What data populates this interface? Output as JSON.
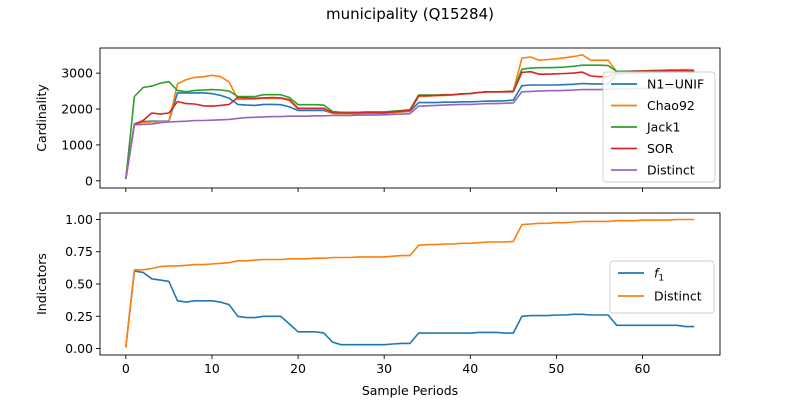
{
  "figure": {
    "title": "municipality (Q15284)"
  },
  "chart_data": [
    {
      "type": "line",
      "xlabel": "",
      "ylabel": "Cardinality",
      "xlim": [
        -3,
        69
      ],
      "ylim": [
        -200,
        3700
      ],
      "xticks": [
        0,
        10,
        20,
        30,
        40,
        50,
        60
      ],
      "yticks": [
        0,
        1000,
        2000,
        3000
      ],
      "legend": "right",
      "x": [
        0,
        1,
        2,
        3,
        4,
        5,
        6,
        7,
        8,
        9,
        10,
        11,
        12,
        13,
        14,
        15,
        16,
        17,
        18,
        19,
        20,
        21,
        22,
        23,
        24,
        25,
        26,
        27,
        28,
        29,
        30,
        31,
        32,
        33,
        34,
        35,
        36,
        37,
        38,
        39,
        40,
        41,
        42,
        43,
        44,
        45,
        46,
        47,
        48,
        49,
        50,
        51,
        52,
        53,
        54,
        55,
        56,
        57,
        58,
        59,
        60,
        61,
        62,
        63,
        64,
        65,
        66
      ],
      "series": [
        {
          "name": "N1−UNIF",
          "color": "#1f77b4",
          "values": [
            50,
            1580,
            1650,
            1660,
            1660,
            1660,
            2450,
            2450,
            2450,
            2450,
            2430,
            2380,
            2300,
            2130,
            2110,
            2100,
            2130,
            2130,
            2120,
            2060,
            1960,
            1960,
            1960,
            1960,
            1880,
            1870,
            1870,
            1870,
            1880,
            1880,
            1880,
            1900,
            1920,
            1930,
            2180,
            2180,
            2180,
            2190,
            2190,
            2200,
            2200,
            2210,
            2220,
            2220,
            2230,
            2250,
            2650,
            2670,
            2670,
            2670,
            2670,
            2680,
            2690,
            2710,
            2700,
            2700,
            2700,
            2980,
            2990,
            3000,
            3000,
            3010,
            3020,
            3020,
            3030,
            3030,
            3020
          ]
        },
        {
          "name": "Chao92",
          "color": "#ff7f0e",
          "values": [
            50,
            1580,
            1620,
            1640,
            1650,
            1650,
            2700,
            2820,
            2880,
            2900,
            2940,
            2900,
            2750,
            2270,
            2270,
            2280,
            2300,
            2300,
            2300,
            2240,
            2000,
            2000,
            2000,
            2000,
            1880,
            1870,
            1870,
            1880,
            1880,
            1890,
            1890,
            1900,
            1920,
            1940,
            2350,
            2360,
            2370,
            2380,
            2390,
            2420,
            2430,
            2460,
            2480,
            2480,
            2490,
            2500,
            3420,
            3450,
            3360,
            3380,
            3400,
            3430,
            3460,
            3510,
            3360,
            3360,
            3360,
            3040,
            3040,
            3050,
            3060,
            3070,
            3080,
            3090,
            3090,
            3100,
            3090
          ]
        },
        {
          "name": "Jack1",
          "color": "#2ca02c",
          "values": [
            50,
            2350,
            2600,
            2640,
            2720,
            2760,
            2520,
            2480,
            2520,
            2530,
            2540,
            2530,
            2500,
            2350,
            2350,
            2350,
            2400,
            2400,
            2400,
            2320,
            2120,
            2120,
            2120,
            2110,
            1930,
            1910,
            1910,
            1910,
            1920,
            1920,
            1920,
            1940,
            1960,
            1980,
            2390,
            2390,
            2390,
            2400,
            2400,
            2420,
            2430,
            2460,
            2480,
            2480,
            2480,
            2500,
            3110,
            3140,
            3150,
            3150,
            3160,
            3170,
            3190,
            3220,
            3220,
            3220,
            3210,
            3050,
            3050,
            3060,
            3060,
            3070,
            3070,
            3070,
            3070,
            3070,
            3060
          ]
        },
        {
          "name": "SOR",
          "color": "#d62728",
          "values": [
            50,
            1580,
            1680,
            1890,
            1860,
            1890,
            2210,
            2150,
            2140,
            2090,
            2080,
            2100,
            2130,
            2320,
            2310,
            2300,
            2310,
            2320,
            2310,
            2260,
            2020,
            2020,
            2020,
            2020,
            1900,
            1890,
            1890,
            1900,
            1900,
            1900,
            1900,
            1920,
            1940,
            1960,
            2370,
            2370,
            2380,
            2390,
            2400,
            2420,
            2430,
            2460,
            2480,
            2480,
            2480,
            2480,
            3020,
            3040,
            2970,
            2970,
            2980,
            2990,
            3000,
            3030,
            2920,
            2900,
            2900,
            3030,
            3040,
            3050,
            3060,
            3060,
            3060,
            3070,
            3070,
            3070,
            3060
          ]
        },
        {
          "name": "Distinct",
          "color": "#9467bd",
          "values": [
            50,
            1560,
            1570,
            1580,
            1620,
            1640,
            1650,
            1660,
            1680,
            1680,
            1690,
            1700,
            1710,
            1740,
            1760,
            1770,
            1780,
            1790,
            1790,
            1800,
            1800,
            1800,
            1810,
            1810,
            1820,
            1820,
            1820,
            1830,
            1830,
            1830,
            1840,
            1850,
            1860,
            1870,
            2080,
            2090,
            2100,
            2110,
            2120,
            2130,
            2130,
            2140,
            2150,
            2150,
            2160,
            2170,
            2480,
            2490,
            2500,
            2510,
            2510,
            2520,
            2530,
            2540,
            2540,
            2540,
            2550,
            2560,
            2560,
            2570,
            2570,
            2580,
            2580,
            2590,
            2590,
            2600,
            2610
          ]
        }
      ]
    },
    {
      "type": "line",
      "xlabel": "Sample Periods",
      "ylabel": "Indicators",
      "xlim": [
        -3,
        69
      ],
      "ylim": [
        -0.05,
        1.05
      ],
      "xticks": [
        0,
        10,
        20,
        30,
        40,
        50,
        60
      ],
      "yticks": [
        "0.00",
        "0.25",
        "0.50",
        "0.75",
        "1.00"
      ],
      "legend": "right",
      "x": [
        0,
        1,
        2,
        3,
        4,
        5,
        6,
        7,
        8,
        9,
        10,
        11,
        12,
        13,
        14,
        15,
        16,
        17,
        18,
        19,
        20,
        21,
        22,
        23,
        24,
        25,
        26,
        27,
        28,
        29,
        30,
        31,
        32,
        33,
        34,
        35,
        36,
        37,
        38,
        39,
        40,
        41,
        42,
        43,
        44,
        45,
        46,
        47,
        48,
        49,
        50,
        51,
        52,
        53,
        54,
        55,
        56,
        57,
        58,
        59,
        60,
        61,
        62,
        63,
        64,
        65,
        66
      ],
      "series": [
        {
          "name": "f1",
          "color": "#1f77b4",
          "values": [
            0.01,
            0.6,
            0.59,
            0.54,
            0.53,
            0.52,
            0.37,
            0.36,
            0.37,
            0.37,
            0.37,
            0.36,
            0.34,
            0.25,
            0.24,
            0.24,
            0.25,
            0.25,
            0.25,
            0.19,
            0.13,
            0.13,
            0.13,
            0.12,
            0.05,
            0.03,
            0.03,
            0.03,
            0.03,
            0.03,
            0.03,
            0.035,
            0.04,
            0.04,
            0.12,
            0.12,
            0.12,
            0.12,
            0.12,
            0.12,
            0.12,
            0.125,
            0.125,
            0.125,
            0.12,
            0.12,
            0.25,
            0.255,
            0.255,
            0.255,
            0.26,
            0.26,
            0.265,
            0.265,
            0.26,
            0.26,
            0.26,
            0.18,
            0.18,
            0.18,
            0.18,
            0.18,
            0.18,
            0.18,
            0.18,
            0.17,
            0.17
          ]
        },
        {
          "name": "Distinct",
          "color": "#ff7f0e",
          "values": [
            0.01,
            0.61,
            0.61,
            0.62,
            0.635,
            0.64,
            0.64,
            0.645,
            0.65,
            0.65,
            0.655,
            0.66,
            0.665,
            0.68,
            0.68,
            0.685,
            0.69,
            0.69,
            0.69,
            0.695,
            0.695,
            0.695,
            0.7,
            0.7,
            0.705,
            0.705,
            0.705,
            0.71,
            0.71,
            0.71,
            0.71,
            0.715,
            0.72,
            0.72,
            0.8,
            0.805,
            0.805,
            0.81,
            0.81,
            0.815,
            0.815,
            0.82,
            0.825,
            0.825,
            0.825,
            0.83,
            0.96,
            0.965,
            0.97,
            0.97,
            0.975,
            0.975,
            0.98,
            0.985,
            0.985,
            0.985,
            0.985,
            0.99,
            0.99,
            0.99,
            0.995,
            0.995,
            0.995,
            0.995,
            1.0,
            1.0,
            1.0
          ]
        }
      ]
    }
  ]
}
